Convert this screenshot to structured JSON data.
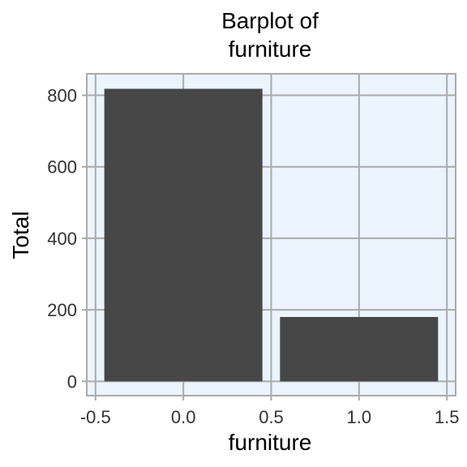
{
  "chart_data": {
    "type": "bar",
    "title_lines": [
      "Barplot of",
      "furniture"
    ],
    "xlabel": "furniture",
    "ylabel": "Total",
    "x": [
      0,
      1
    ],
    "values": [
      818,
      180
    ],
    "bar_width": 0.9,
    "xlim": [
      -0.55,
      1.55
    ],
    "ylim": [
      -40,
      860
    ],
    "xticks": [
      -0.5,
      0.0,
      0.5,
      1.0,
      1.5
    ],
    "xtick_labels": [
      "-0.5",
      "0.0",
      "0.5",
      "1.0",
      "1.5"
    ],
    "yticks": [
      0,
      200,
      400,
      600,
      800
    ],
    "ytick_labels": [
      "0",
      "200",
      "400",
      "600",
      "800"
    ],
    "grid": true,
    "colors": {
      "bar": "#474747",
      "panel_background": "#EBF4FF",
      "grid": "#AAAAAA",
      "panel_border": "#AAAAAA"
    }
  }
}
